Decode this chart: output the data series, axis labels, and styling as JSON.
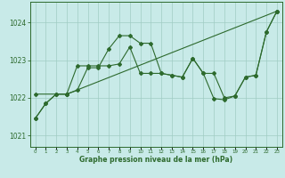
{
  "xlabel": "Graphe pression niveau de la mer (hPa)",
  "ylim": [
    1020.7,
    1024.55
  ],
  "xlim": [
    -0.5,
    23.5
  ],
  "yticks": [
    1021,
    1022,
    1023,
    1024
  ],
  "xtick_labels": [
    "0",
    "1",
    "2",
    "3",
    "4",
    "5",
    "6",
    "7",
    "8",
    "9",
    "10",
    "11",
    "12",
    "13",
    "14",
    "15",
    "16",
    "17",
    "18",
    "19",
    "20",
    "21",
    "22",
    "23"
  ],
  "bg_color": "#c8eae8",
  "grid_color": "#a0ccc4",
  "line_color": "#2d6a2d",
  "line1_x": [
    0,
    1,
    2,
    3,
    4,
    5,
    6,
    7,
    8,
    9,
    10,
    11,
    12,
    13,
    14,
    15,
    16,
    17,
    18,
    19,
    20,
    21,
    22,
    23
  ],
  "line1_y": [
    1021.45,
    1021.85,
    1022.1,
    1022.1,
    1022.2,
    1022.8,
    1022.8,
    1023.3,
    1023.65,
    1023.65,
    1023.45,
    1023.45,
    1022.65,
    1022.6,
    1022.55,
    1023.05,
    1022.65,
    1022.65,
    1022.0,
    1022.05,
    1022.55,
    1022.6,
    1023.75,
    1024.3
  ],
  "line2_x": [
    0,
    1,
    2,
    3,
    4,
    5,
    6,
    7,
    8,
    9,
    10,
    11,
    12,
    13,
    14,
    15,
    16,
    17,
    18,
    19,
    20,
    21,
    22,
    23
  ],
  "line2_y": [
    1021.45,
    1021.85,
    1022.1,
    1022.1,
    1022.85,
    1022.85,
    1022.85,
    1022.85,
    1022.9,
    1023.35,
    1022.65,
    1022.65,
    1022.65,
    1022.6,
    1022.55,
    1023.05,
    1022.65,
    1021.98,
    1021.95,
    1022.05,
    1022.55,
    1022.6,
    1023.75,
    1024.3
  ],
  "line3_x": [
    0,
    3,
    23
  ],
  "line3_y": [
    1022.1,
    1022.1,
    1024.3
  ],
  "bottom_bar_color": "#2d6a2d",
  "bottom_bar_height": 0.12,
  "fig_width": 3.2,
  "fig_height": 2.0,
  "dpi": 100
}
